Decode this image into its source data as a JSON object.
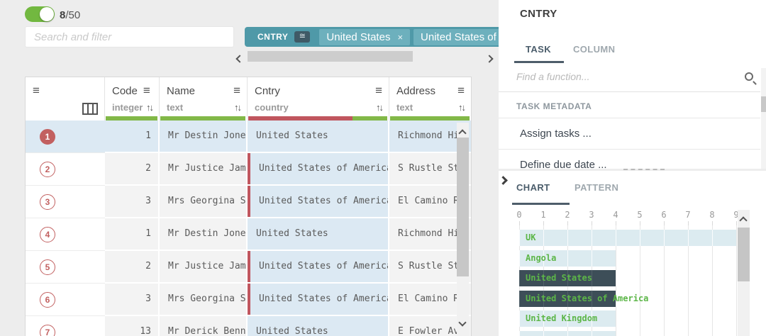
{
  "header": {
    "toggle_on": true,
    "row_count": {
      "shown": "8",
      "total": "/50"
    },
    "search_placeholder": "Search and filter",
    "filter_chip": {
      "column": "CNTRY",
      "operator_icon": "≅",
      "values": [
        {
          "text": "United States",
          "remove": "×"
        },
        {
          "text": "United States of A"
        }
      ]
    }
  },
  "table": {
    "gutter_menu_icon": "≡",
    "columns": [
      {
        "name": "Code",
        "type": "integer",
        "menu_icon": "≡",
        "sort_icon": "↑↓",
        "quality": {
          "valid": 1.0,
          "invalid": 0.0
        }
      },
      {
        "name": "Name",
        "type": "text",
        "menu_icon": "≡",
        "sort_icon": "↑↓",
        "quality": {
          "valid": 1.0,
          "invalid": 0.0
        }
      },
      {
        "name": "Cntry",
        "type": "country",
        "menu_icon": "≡",
        "sort_icon": "↑↓",
        "quality": {
          "valid": 0.25,
          "invalid": 0.75
        }
      },
      {
        "name": "Address",
        "type": "text",
        "menu_icon": "≡",
        "sort_icon": "↑↓",
        "quality": {
          "valid": 1.0,
          "invalid": 0.0
        }
      }
    ],
    "rows": [
      {
        "num": "1",
        "code": "1",
        "name": "Mr Destin Jones",
        "cntry": "United States",
        "address": "Richmond Hil",
        "selected": true,
        "cntry_invalid": false,
        "badge_filled": true
      },
      {
        "num": "2",
        "code": "2",
        "name": "Mr Justice Jam…",
        "cntry": "United States of America",
        "address": "S Rustle St",
        "selected": false,
        "cntry_invalid": true,
        "badge_filled": false
      },
      {
        "num": "3",
        "code": "3",
        "name": "Mrs Georgina S…",
        "cntry": "United States of America",
        "address": "El Camino Re",
        "selected": false,
        "cntry_invalid": true,
        "badge_filled": false
      },
      {
        "num": "4",
        "code": "1",
        "name": "Mr Destin Jones",
        "cntry": "United States",
        "address": "Richmond Hil",
        "selected": false,
        "cntry_invalid": false,
        "badge_filled": false
      },
      {
        "num": "5",
        "code": "2",
        "name": "Mr Justice Jam…",
        "cntry": "United States of America",
        "address": "S Rustle St",
        "selected": false,
        "cntry_invalid": true,
        "badge_filled": false
      },
      {
        "num": "6",
        "code": "3",
        "name": "Mrs Georgina S…",
        "cntry": "United States of America",
        "address": "El Camino Re",
        "selected": false,
        "cntry_invalid": true,
        "badge_filled": false
      },
      {
        "num": "7",
        "code": "13",
        "name": "Mr Derick Benn…",
        "cntry": "United States",
        "address": "E Fowler Ave",
        "selected": false,
        "cntry_invalid": false,
        "badge_filled": false
      }
    ]
  },
  "task_panel": {
    "title": "CNTRY",
    "tabs": [
      "TASK",
      "COLUMN"
    ],
    "active_tab": "TASK",
    "function_search_placeholder": "Find a function...",
    "section_label": "TASK METADATA",
    "items": [
      "Assign tasks ...",
      "Define due date ..."
    ]
  },
  "chart_panel": {
    "tabs": [
      "CHART",
      "PATTERN"
    ],
    "active_tab": "CHART"
  },
  "chart_data": {
    "type": "bar",
    "orientation": "horizontal",
    "title": "",
    "xlabel": "",
    "ylabel": "",
    "categories": [
      "UK",
      "Angola",
      "United States",
      "United States of America",
      "United Kingdom"
    ],
    "values": [
      9,
      4,
      4,
      4,
      4
    ],
    "selected_categories": [
      "United States",
      "United States of America"
    ],
    "extra_partial_bar_value": 4,
    "xticks": [
      "0",
      "1",
      "2",
      "3",
      "4",
      "5",
      "6",
      "7",
      "8",
      "9"
    ],
    "xlim": [
      0,
      9
    ],
    "grid": true,
    "legend": false,
    "bar_color": "#dcebf0",
    "selected_bar_color": "#3d4e58",
    "label_color": "#5cb648"
  },
  "colors": {
    "toggle_green": "#72b840",
    "chip_teal": "#4f99a8",
    "chip_value_teal": "#6db0bd",
    "valid_green": "#82b848",
    "invalid_red": "#c0565e",
    "selection_blue": "#dce9f3",
    "badge_red": "#c26060",
    "tab_dark": "#4e5d6a"
  }
}
